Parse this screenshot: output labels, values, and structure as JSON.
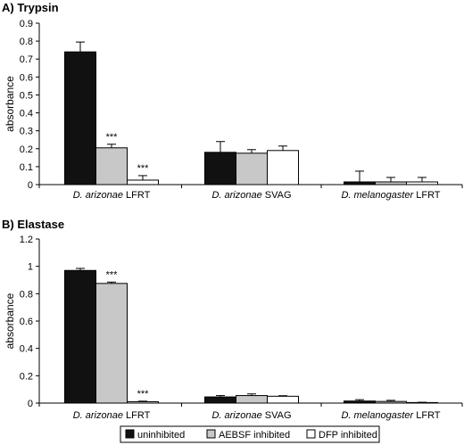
{
  "chart_data": [
    {
      "type": "bar",
      "title": "A) Trypsin",
      "ylabel": "absorbance",
      "ylim": [
        0,
        0.9
      ],
      "yticks": [
        0,
        0.1,
        0.2,
        0.3,
        0.4,
        0.5,
        0.6,
        0.7,
        0.8,
        0.9
      ],
      "ytick_labels": [
        "0",
        "0.1",
        "0.2",
        "0.3",
        "0.4",
        "0.5",
        "0.6",
        "0.7",
        "0.8",
        "0.9"
      ],
      "categories": [
        {
          "italic": "D. arizonae",
          "rest": " LFRT"
        },
        {
          "italic": "D. arizonae",
          "rest": " SVAG"
        },
        {
          "italic": "D. melanogaster",
          "rest": " LFRT"
        }
      ],
      "series": [
        {
          "name": "uninhibited",
          "values": [
            0.74,
            0.18,
            0.015
          ],
          "errors": [
            0.055,
            0.06,
            0.06
          ]
        },
        {
          "name": "AEBSF inhibited",
          "values": [
            0.205,
            0.175,
            0.015
          ],
          "errors": [
            0.02,
            0.02,
            0.025
          ]
        },
        {
          "name": "DFP inhibited",
          "values": [
            0.025,
            0.19,
            0.015
          ],
          "errors": [
            0.025,
            0.025,
            0.025
          ]
        }
      ],
      "annotations": [
        {
          "category": 0,
          "series": 1,
          "text": "***"
        },
        {
          "category": 0,
          "series": 2,
          "text": "***"
        }
      ],
      "grid": false
    },
    {
      "type": "bar",
      "title": "B) Elastase",
      "ylabel": "absorbance",
      "ylim": [
        0,
        1.2
      ],
      "yticks": [
        0,
        0.2,
        0.4,
        0.6,
        0.8,
        1.0,
        1.2
      ],
      "ytick_labels": [
        "0",
        "0.2",
        "0.4",
        "0.6",
        "0.8",
        "1",
        "1.2"
      ],
      "categories": [
        {
          "italic": "D. arizonae",
          "rest": " LFRT"
        },
        {
          "italic": "D. arizonae",
          "rest": " SVAG"
        },
        {
          "italic": "D. melanogaster",
          "rest": " LFRT"
        }
      ],
      "series": [
        {
          "name": "uninhibited",
          "values": [
            0.97,
            0.045,
            0.015
          ],
          "errors": [
            0.015,
            0.01,
            0.01
          ]
        },
        {
          "name": "AEBSF inhibited",
          "values": [
            0.875,
            0.055,
            0.012
          ],
          "errors": [
            0.01,
            0.012,
            0.008
          ]
        },
        {
          "name": "DFP inhibited",
          "values": [
            0.01,
            0.05,
            0.004
          ],
          "errors": [
            0.004,
            0.004,
            0.002
          ]
        }
      ],
      "annotations": [
        {
          "category": 0,
          "series": 1,
          "text": "***"
        },
        {
          "category": 0,
          "series": 2,
          "text": "***"
        }
      ],
      "grid": false
    }
  ],
  "legend": {
    "placement": "bottom",
    "items": [
      {
        "label": "uninhibited",
        "color": "#111111"
      },
      {
        "label": "AEBSF inhibited",
        "color": "#c8c8c8"
      },
      {
        "label": "DFP inhibited",
        "color": "#ffffff"
      }
    ]
  },
  "colors": {
    "uninhibited": "#111111",
    "AEBSF inhibited": "#c8c8c8",
    "DFP inhibited": "#ffffff",
    "axis": "#000000"
  }
}
